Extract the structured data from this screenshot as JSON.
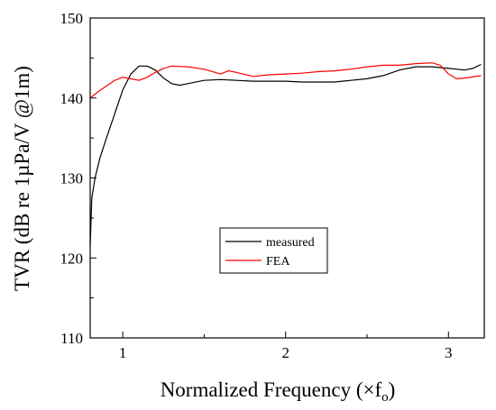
{
  "chart_data": {
    "type": "line",
    "title": "",
    "xlabel": "Normalized Frequency (×f",
    "xlabel_sub": "o",
    "xlabel_close": ")",
    "ylabel": "TVR (dB re 1µPa/V @1m)",
    "xlim": [
      0.8,
      3.22
    ],
    "ylim": [
      110,
      150
    ],
    "xticks": [
      1,
      2,
      3
    ],
    "yticks": [
      110,
      120,
      130,
      140,
      150
    ],
    "grid": false,
    "legend_placement": "center",
    "series": [
      {
        "name": "measured",
        "color": "#000000",
        "x": [
          0.8,
          0.81,
          0.83,
          0.86,
          0.9,
          0.95,
          1.0,
          1.05,
          1.1,
          1.15,
          1.2,
          1.25,
          1.3,
          1.35,
          1.4,
          1.5,
          1.6,
          1.7,
          1.8,
          1.9,
          2.0,
          2.1,
          2.2,
          2.3,
          2.4,
          2.5,
          2.6,
          2.7,
          2.8,
          2.9,
          3.0,
          3.1,
          3.15,
          3.2
        ],
        "y": [
          121.5,
          127.5,
          130.0,
          132.5,
          135.0,
          138.0,
          141.0,
          143.0,
          144.0,
          144.0,
          143.5,
          142.5,
          141.8,
          141.6,
          141.8,
          142.2,
          142.3,
          142.2,
          142.1,
          142.1,
          142.1,
          142.0,
          142.0,
          142.0,
          142.2,
          142.4,
          142.8,
          143.5,
          143.9,
          143.9,
          143.7,
          143.5,
          143.7,
          144.2
        ]
      },
      {
        "name": "FEA",
        "color": "#ff0000",
        "x": [
          0.8,
          0.85,
          0.9,
          0.95,
          1.0,
          1.05,
          1.1,
          1.15,
          1.2,
          1.25,
          1.3,
          1.4,
          1.5,
          1.6,
          1.65,
          1.7,
          1.8,
          1.9,
          2.0,
          2.1,
          2.2,
          2.3,
          2.4,
          2.5,
          2.6,
          2.7,
          2.8,
          2.9,
          2.95,
          3.0,
          3.05,
          3.1,
          3.2
        ],
        "y": [
          140.0,
          140.8,
          141.5,
          142.2,
          142.6,
          142.4,
          142.2,
          142.6,
          143.2,
          143.7,
          144.0,
          143.9,
          143.6,
          143.0,
          143.4,
          143.2,
          142.7,
          142.9,
          143.0,
          143.1,
          143.3,
          143.4,
          143.6,
          143.9,
          144.1,
          144.1,
          144.3,
          144.4,
          144.1,
          143.0,
          142.4,
          142.5,
          142.8
        ]
      }
    ]
  }
}
